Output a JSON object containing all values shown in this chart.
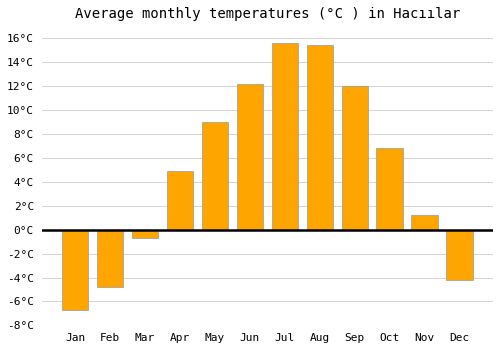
{
  "title": "Average monthly temperatures (°C ) in Hacıılar",
  "months": [
    "Jan",
    "Feb",
    "Mar",
    "Apr",
    "May",
    "Jun",
    "Jul",
    "Aug",
    "Sep",
    "Oct",
    "Nov",
    "Dec"
  ],
  "values": [
    -6.7,
    -4.8,
    -0.7,
    4.9,
    9.0,
    12.2,
    15.6,
    15.4,
    12.0,
    6.8,
    1.2,
    -4.2
  ],
  "bar_color": "#FFA500",
  "bar_edge_color": "#999999",
  "ylim": [
    -8,
    17
  ],
  "yticks": [
    -8,
    -6,
    -4,
    -2,
    0,
    2,
    4,
    6,
    8,
    10,
    12,
    14,
    16
  ],
  "background_color": "#ffffff",
  "plot_bg_color": "#ffffff",
  "grid_color": "#cccccc",
  "title_fontsize": 10,
  "tick_fontsize": 8
}
